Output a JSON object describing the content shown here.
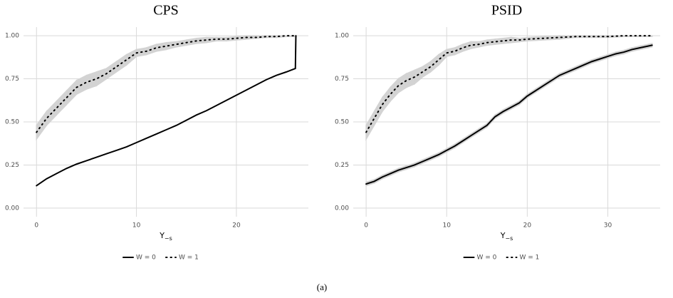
{
  "chart_data": [
    {
      "type": "line",
      "title": "CPS",
      "x_label": "Y",
      "x_label_sub": "−s",
      "xlim": [
        -1.3,
        27.2
      ],
      "ylim": [
        -0.05,
        1.05
      ],
      "xticks": [
        0,
        10,
        20
      ],
      "yticks": [
        {
          "value": 0,
          "label": "0.00"
        },
        {
          "value": 0.25,
          "label": "0.25"
        },
        {
          "value": 0.5,
          "label": "0.50"
        },
        {
          "value": 0.75,
          "label": "0.75"
        },
        {
          "value": 1,
          "label": "1.00"
        }
      ],
      "grid": true,
      "legend": "bottom",
      "band_color": "#d3d3d3",
      "series": [
        {
          "name": "W = 0",
          "color": "#000000",
          "style": "solid",
          "x": [
            0,
            1,
            2,
            3,
            4,
            5,
            6,
            7,
            8,
            9,
            10,
            11,
            12,
            13,
            14,
            15,
            16,
            17,
            18,
            19,
            20,
            21,
            22,
            23,
            24,
            25,
            25.9,
            25.95
          ],
          "values": [
            0.13,
            0.17,
            0.2,
            0.23,
            0.255,
            0.275,
            0.295,
            0.315,
            0.335,
            0.355,
            0.38,
            0.405,
            0.43,
            0.455,
            0.48,
            0.51,
            0.54,
            0.565,
            0.595,
            0.625,
            0.655,
            0.685,
            0.715,
            0.745,
            0.77,
            0.79,
            0.81,
            1.0
          ]
        },
        {
          "name": "W = 1",
          "color": "#000000",
          "style": "dotted",
          "x": [
            0,
            1,
            2,
            3,
            4,
            5,
            6,
            7,
            8,
            9,
            10,
            11,
            12,
            13,
            14,
            15,
            16,
            17,
            18,
            19,
            20,
            21,
            22,
            23,
            24,
            25,
            26
          ],
          "values": [
            0.44,
            0.52,
            0.58,
            0.64,
            0.7,
            0.73,
            0.75,
            0.78,
            0.82,
            0.86,
            0.9,
            0.91,
            0.93,
            0.94,
            0.95,
            0.96,
            0.97,
            0.975,
            0.98,
            0.98,
            0.985,
            0.99,
            0.99,
            0.995,
            0.995,
            1.0,
            1.0
          ],
          "lower": [
            0.4,
            0.48,
            0.54,
            0.6,
            0.66,
            0.69,
            0.71,
            0.75,
            0.79,
            0.83,
            0.88,
            0.89,
            0.91,
            0.92,
            0.935,
            0.945,
            0.955,
            0.96,
            0.97,
            0.97,
            0.975,
            0.98,
            0.985,
            0.99,
            0.99,
            0.995,
            0.995
          ],
          "upper": [
            0.48,
            0.56,
            0.62,
            0.68,
            0.74,
            0.77,
            0.79,
            0.81,
            0.85,
            0.89,
            0.92,
            0.93,
            0.95,
            0.96,
            0.965,
            0.975,
            0.985,
            0.99,
            0.99,
            0.99,
            0.995,
            1.0,
            1.0,
            1.0,
            1.0,
            1.0,
            1.0
          ]
        }
      ]
    },
    {
      "type": "line",
      "title": "PSID",
      "x_label": "Y",
      "x_label_sub": "−s",
      "xlim": [
        -1.6,
        36.5
      ],
      "ylim": [
        -0.05,
        1.05
      ],
      "xticks": [
        0,
        10,
        20,
        30
      ],
      "yticks": [
        {
          "value": 0,
          "label": "0.00"
        },
        {
          "value": 0.25,
          "label": "0.25"
        },
        {
          "value": 0.5,
          "label": "0.50"
        },
        {
          "value": 0.75,
          "label": "0.75"
        },
        {
          "value": 1,
          "label": "1.00"
        }
      ],
      "grid": true,
      "legend": "bottom",
      "band_color": "#d3d3d3",
      "series": [
        {
          "name": "W = 0",
          "color": "#000000",
          "style": "solid",
          "x": [
            0,
            1,
            2,
            3,
            4,
            5,
            6,
            7,
            8,
            9,
            10,
            11,
            12,
            13,
            14,
            15,
            16,
            17,
            18,
            19,
            20,
            21,
            22,
            23,
            24,
            25,
            26,
            27,
            28,
            29,
            30,
            31,
            32,
            33,
            34,
            35,
            35.5
          ],
          "values": [
            0.14,
            0.155,
            0.18,
            0.2,
            0.22,
            0.235,
            0.25,
            0.27,
            0.29,
            0.31,
            0.335,
            0.36,
            0.39,
            0.42,
            0.45,
            0.48,
            0.53,
            0.56,
            0.585,
            0.61,
            0.65,
            0.68,
            0.71,
            0.74,
            0.77,
            0.79,
            0.81,
            0.83,
            0.85,
            0.865,
            0.88,
            0.895,
            0.905,
            0.92,
            0.93,
            0.94,
            0.945
          ],
          "lower": [
            0.13,
            0.145,
            0.17,
            0.19,
            0.21,
            0.225,
            0.24,
            0.26,
            0.28,
            0.3,
            0.325,
            0.35,
            0.38,
            0.41,
            0.44,
            0.47,
            0.52,
            0.55,
            0.575,
            0.6,
            0.64,
            0.67,
            0.7,
            0.73,
            0.76,
            0.78,
            0.8,
            0.82,
            0.84,
            0.855,
            0.87,
            0.885,
            0.895,
            0.91,
            0.92,
            0.93,
            0.935
          ],
          "upper": [
            0.15,
            0.165,
            0.19,
            0.21,
            0.23,
            0.245,
            0.26,
            0.28,
            0.3,
            0.32,
            0.345,
            0.37,
            0.4,
            0.43,
            0.46,
            0.49,
            0.54,
            0.57,
            0.595,
            0.62,
            0.66,
            0.69,
            0.72,
            0.75,
            0.78,
            0.8,
            0.82,
            0.84,
            0.86,
            0.875,
            0.89,
            0.905,
            0.915,
            0.93,
            0.94,
            0.95,
            0.955
          ]
        },
        {
          "name": "W = 1",
          "color": "#000000",
          "style": "dotted",
          "x": [
            0,
            1,
            2,
            3,
            4,
            5,
            6,
            7,
            8,
            9,
            10,
            11,
            12,
            13,
            14,
            15,
            16,
            17,
            18,
            19,
            20,
            22,
            24,
            26,
            28,
            30,
            32,
            35.5
          ],
          "values": [
            0.44,
            0.52,
            0.6,
            0.66,
            0.71,
            0.74,
            0.76,
            0.79,
            0.82,
            0.86,
            0.9,
            0.91,
            0.93,
            0.945,
            0.95,
            0.96,
            0.965,
            0.97,
            0.975,
            0.975,
            0.98,
            0.985,
            0.99,
            0.995,
            0.995,
            0.995,
            1.0,
            1.0
          ],
          "lower": [
            0.4,
            0.48,
            0.56,
            0.62,
            0.67,
            0.7,
            0.72,
            0.76,
            0.79,
            0.83,
            0.88,
            0.89,
            0.91,
            0.925,
            0.935,
            0.945,
            0.95,
            0.955,
            0.96,
            0.965,
            0.97,
            0.975,
            0.98,
            0.99,
            0.99,
            0.99,
            0.995,
            0.995
          ],
          "upper": [
            0.48,
            0.56,
            0.64,
            0.7,
            0.75,
            0.78,
            0.8,
            0.82,
            0.85,
            0.89,
            0.92,
            0.93,
            0.95,
            0.965,
            0.965,
            0.975,
            0.98,
            0.985,
            0.99,
            0.985,
            0.99,
            0.995,
            1.0,
            1.0,
            1.0,
            1.0,
            1.0,
            1.0
          ]
        }
      ]
    }
  ],
  "caption": "(a)"
}
